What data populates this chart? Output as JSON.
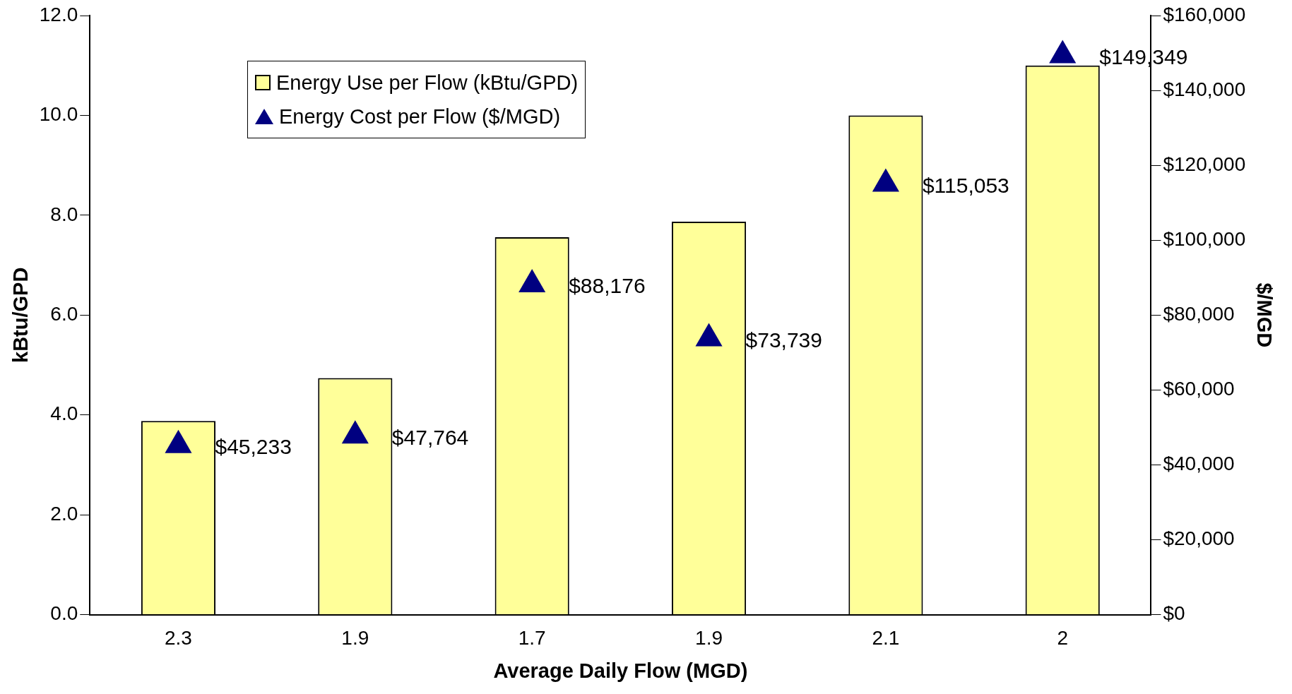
{
  "chart_data": {
    "type": "bar",
    "xlabel": "Average Daily Flow (MGD)",
    "ylabel": "kBtu/GPD",
    "y2label": "$/MGD",
    "categories": [
      "2.3",
      "1.9",
      "1.7",
      "1.9",
      "2.1",
      "2"
    ],
    "series": [
      {
        "name": "Energy Use per Flow (kBtu/GPD)",
        "color": "#ffff99",
        "values": [
          3.88,
          4.74,
          7.56,
          7.87,
          10.0,
          11.0
        ]
      },
      {
        "name": "Energy Cost per Flow ($/MGD)",
        "type": "scatter",
        "axis": "y2",
        "color": "#000080",
        "marker": "triangle",
        "values": [
          45233,
          47764,
          88176,
          73739,
          115053,
          149349
        ],
        "value_labels": [
          "$45,233",
          "$47,764",
          "$88,176",
          "$73,739",
          "$115,053",
          "$149,349"
        ]
      }
    ],
    "ylim": [
      0,
      12
    ],
    "yticks": [
      {
        "value": 0,
        "label": "0.0"
      },
      {
        "value": 2,
        "label": "2.0"
      },
      {
        "value": 4,
        "label": "4.0"
      },
      {
        "value": 6,
        "label": "6.0"
      },
      {
        "value": 8,
        "label": "8.0"
      },
      {
        "value": 10,
        "label": "10.0"
      },
      {
        "value": 12,
        "label": "12.0"
      }
    ],
    "y2lim": [
      0,
      160000
    ],
    "y2ticks": [
      {
        "value": 0,
        "label": "$0"
      },
      {
        "value": 20000,
        "label": "$20,000"
      },
      {
        "value": 40000,
        "label": "$40,000"
      },
      {
        "value": 60000,
        "label": "$60,000"
      },
      {
        "value": 80000,
        "label": "$80,000"
      },
      {
        "value": 100000,
        "label": "$100,000"
      },
      {
        "value": 120000,
        "label": "$120,000"
      },
      {
        "value": 140000,
        "label": "$140,000"
      },
      {
        "value": 160000,
        "label": "$160,000"
      }
    ],
    "grid": false,
    "legend": "top left"
  }
}
